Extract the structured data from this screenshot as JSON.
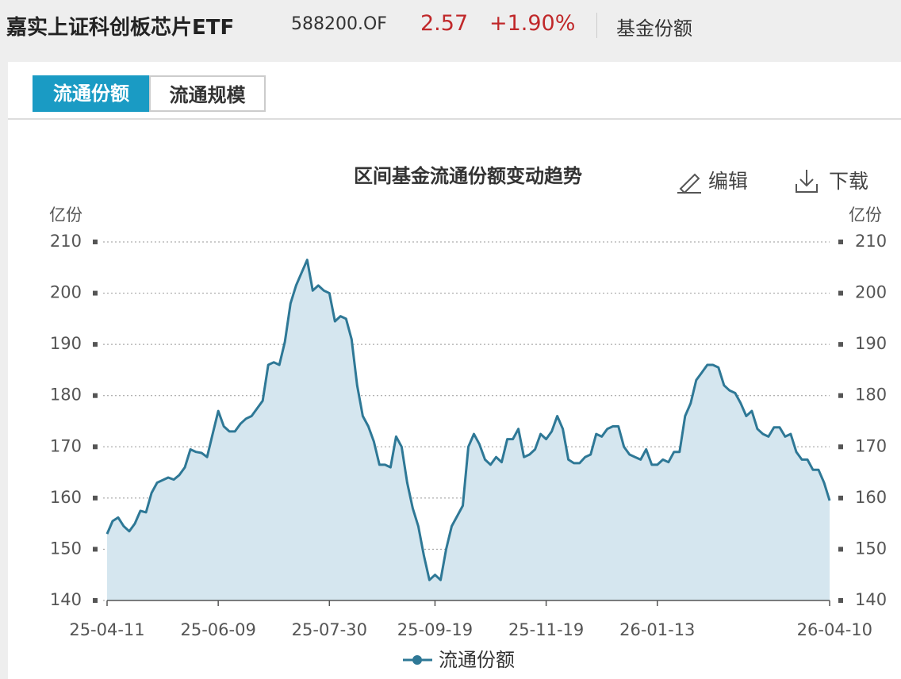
{
  "header": {
    "title": "嘉实上证科创板芯片ETF",
    "code": "588200.OF",
    "price": "2.57",
    "change": "+1.90%",
    "section": "基金份额"
  },
  "tabs": [
    "流通份额",
    "流通规模"
  ],
  "toolbar": {
    "edit": "编辑",
    "download": "下载"
  },
  "chart_data": {
    "type": "area",
    "title": "区间基金流通份额变动趋势",
    "y_label": "亿份",
    "y2_label": "亿份",
    "ylim": [
      140,
      210
    ],
    "yticks": [
      140,
      150,
      160,
      170,
      180,
      190,
      200,
      210
    ],
    "y2lim": [
      140,
      210
    ],
    "y2ticks": [
      140,
      150,
      160,
      170,
      180,
      190,
      200,
      210
    ],
    "grid": true,
    "legend": "bottom",
    "categories": [
      "25-04-11",
      null,
      null,
      null,
      null,
      null,
      null,
      null,
      null,
      null,
      null,
      null,
      null,
      null,
      null,
      null,
      null,
      null,
      null,
      null,
      "25-06-09",
      null,
      null,
      null,
      null,
      null,
      null,
      null,
      null,
      null,
      null,
      null,
      null,
      null,
      null,
      null,
      null,
      null,
      null,
      null,
      "25-07-30",
      null,
      null,
      null,
      null,
      null,
      null,
      null,
      null,
      null,
      null,
      null,
      null,
      null,
      null,
      null,
      null,
      null,
      null,
      "25-09-19",
      null,
      null,
      null,
      null,
      null,
      null,
      null,
      null,
      null,
      null,
      null,
      null,
      null,
      null,
      null,
      null,
      null,
      null,
      null,
      "25-11-19",
      null,
      null,
      null,
      null,
      null,
      null,
      null,
      null,
      null,
      null,
      null,
      null,
      null,
      null,
      null,
      null,
      null,
      null,
      null,
      "26-01-13",
      null,
      null,
      null,
      null,
      null,
      null,
      null,
      null,
      null,
      null,
      null,
      null,
      null,
      null,
      null,
      null,
      null,
      null,
      null,
      null,
      null,
      null,
      null,
      null,
      null,
      null,
      null,
      null,
      null,
      null,
      "26-04-10"
    ],
    "series": [
      {
        "name": "流通份额",
        "color": "#2e7896",
        "fill": "#d5e6ef",
        "values": [
          153,
          155.5,
          156.2,
          154.5,
          153.5,
          155,
          157.5,
          157.2,
          161,
          163,
          163.5,
          164,
          163.6,
          164.5,
          166,
          169.5,
          169,
          168.8,
          168,
          172.5,
          177,
          174,
          173,
          173,
          174.5,
          175.5,
          176,
          177.5,
          179,
          186,
          186.5,
          186,
          190.5,
          198,
          201.5,
          204,
          206.5,
          200.5,
          201.5,
          200.5,
          200,
          194.5,
          195.5,
          195,
          191,
          182,
          176,
          174,
          171,
          166.5,
          166.5,
          166,
          172,
          170,
          163,
          158,
          154.5,
          148.8,
          144,
          145,
          144,
          150,
          154.5,
          156.5,
          158.5,
          170,
          172.5,
          170.5,
          167.5,
          166.5,
          168,
          167,
          171.5,
          171.5,
          173.5,
          168,
          168.5,
          169.5,
          172.5,
          171.5,
          173,
          176,
          173.5,
          167.5,
          166.8,
          166.8,
          168,
          168.5,
          172.5,
          172,
          173.5,
          174,
          174,
          170,
          168.5,
          168,
          167.5,
          169.5,
          166.5,
          166.5,
          167.5,
          167,
          169,
          169,
          176,
          178.5,
          183,
          184.5,
          186,
          186,
          185.5,
          182,
          181,
          180.5,
          178.5,
          176,
          177,
          173.5,
          172.5,
          172,
          173.8,
          173.8,
          172,
          172.5,
          169,
          167.5,
          167.5,
          165.5,
          165.5,
          163,
          159.5
        ]
      }
    ]
  }
}
